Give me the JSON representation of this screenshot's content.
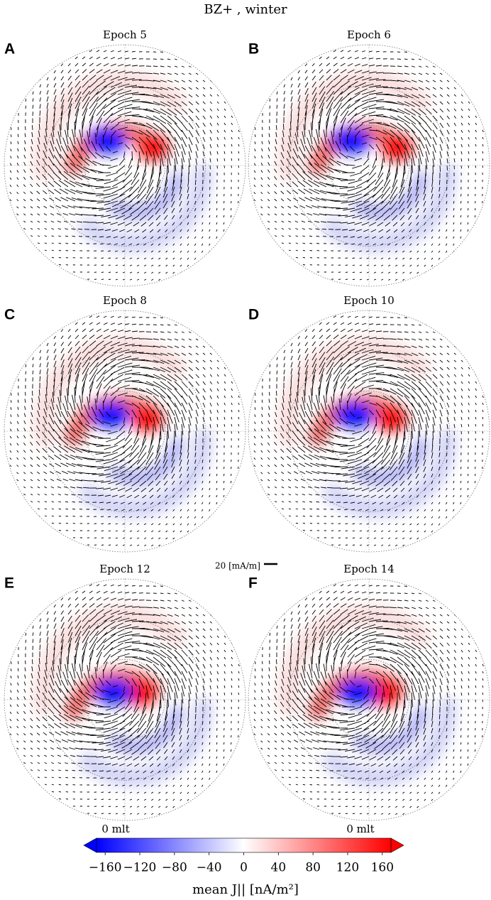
{
  "chart_data": {
    "type": "polar-map",
    "title": "BZ+ , winter",
    "panels": [
      {
        "label": "A",
        "title": "Epoch 5"
      },
      {
        "label": "B",
        "title": "Epoch 6"
      },
      {
        "label": "C",
        "title": "Epoch 8"
      },
      {
        "label": "D",
        "title": "Epoch 10"
      },
      {
        "label": "E",
        "title": "Epoch 12"
      },
      {
        "label": "F",
        "title": "Epoch 14"
      }
    ],
    "scale_label": "20 [mA/m]",
    "mlt_labels": [
      "0 mlt",
      "0 mlt"
    ],
    "colorbar": {
      "label": "mean J|| [nA/m²]",
      "lim": [
        -170,
        170
      ],
      "ticks": [
        {
          "value": -160,
          "label": "−160"
        },
        {
          "value": -120,
          "label": "−120"
        },
        {
          "value": -80,
          "label": "−80"
        },
        {
          "value": -40,
          "label": "−40"
        },
        0,
        40,
        80,
        120,
        160
      ]
    }
  }
}
